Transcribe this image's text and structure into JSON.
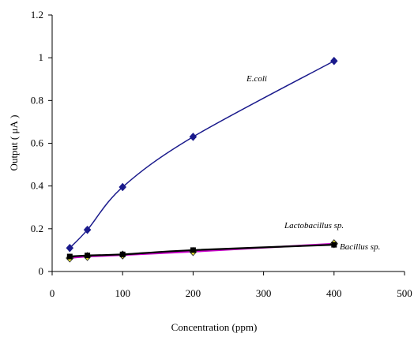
{
  "chart_data": {
    "type": "line",
    "title": "",
    "xlabel": "Concentration (ppm)",
    "ylabel": "Output ( μA )",
    "xlim": [
      0,
      500
    ],
    "ylim": [
      0,
      1.2
    ],
    "xticks": [
      "0",
      "100",
      "200",
      "300",
      "400",
      "500"
    ],
    "yticks": [
      "0",
      "0.2",
      "0.4",
      "0.6",
      "0.8",
      "1",
      "1.2"
    ],
    "grid": false,
    "legend": "none",
    "series": [
      {
        "name": "E.coli",
        "color": "#1a1a8c",
        "marker": "diamond",
        "x": [
          25,
          50,
          100,
          200,
          400
        ],
        "y": [
          0.11,
          0.195,
          0.395,
          0.63,
          0.985
        ]
      },
      {
        "name": "Lactobacillus sp.",
        "color": "#000000",
        "marker": "square",
        "x": [
          25,
          50,
          100,
          200,
          400
        ],
        "y": [
          0.07,
          0.075,
          0.08,
          0.1,
          0.125
        ]
      },
      {
        "name": "Bacillus sp.",
        "color": "#cc00cc",
        "marker": "diamond-yellow",
        "x": [
          25,
          50,
          100,
          200,
          400
        ],
        "y": [
          0.063,
          0.07,
          0.077,
          0.093,
          0.13
        ]
      }
    ],
    "annotations": [
      {
        "text": "E.coli",
        "series": "E.coli"
      },
      {
        "text": "Lactobacillus sp.",
        "series": "Lactobacillus sp."
      },
      {
        "text": "Bacillus sp.",
        "series": "Bacillus sp."
      }
    ]
  }
}
